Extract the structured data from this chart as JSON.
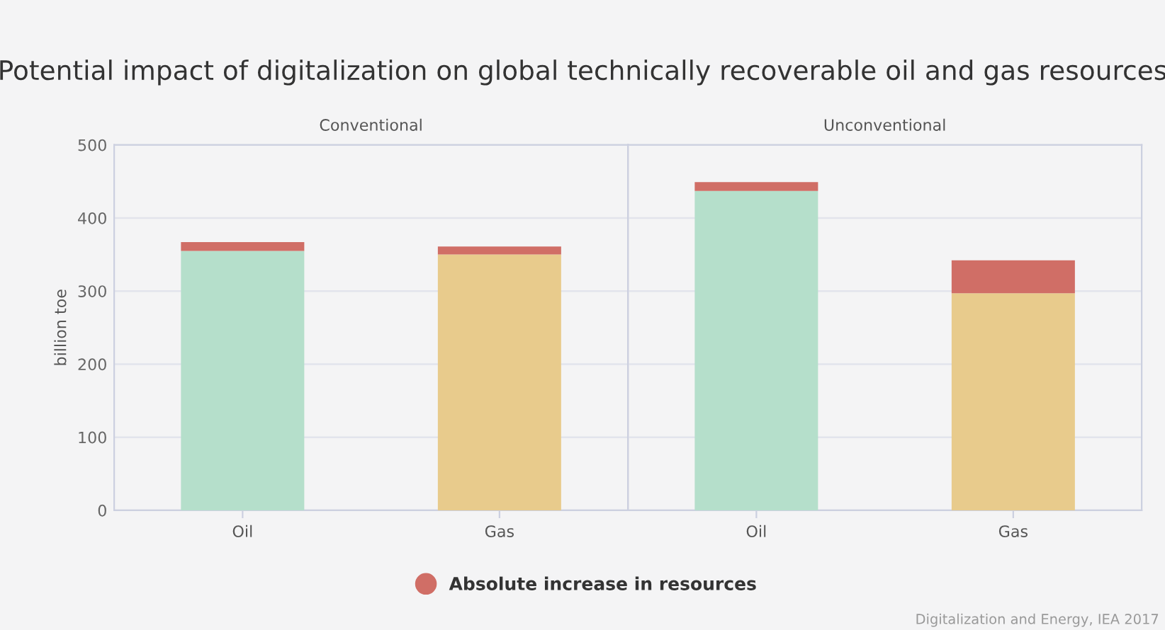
{
  "chart_data": {
    "type": "bar",
    "title": "Potential impact of digitalization on global technically recoverable oil and gas resources",
    "ylabel": "billion toe",
    "categories": [
      "Oil",
      "Gas",
      "Oil",
      "Gas"
    ],
    "stacked": true,
    "series": [
      {
        "colors": [
          "#b5dfcb",
          "#e8cb8c",
          "#b5dfcb",
          "#e8cb8c"
        ],
        "values": [
          355,
          350,
          437,
          297
        ]
      },
      {
        "name": "Absolute increase in resources",
        "color": "#d06e66",
        "values": [
          12,
          11,
          12,
          45
        ]
      }
    ],
    "ylim": [
      0,
      500
    ],
    "yticks": [
      0,
      100,
      200,
      300,
      400,
      500
    ],
    "grid": "y",
    "legend": "bottom",
    "marker": "circle",
    "annotations": [
      "Conventional",
      "Unconventional",
      "Digitalization and Energy, IEA 2017"
    ]
  }
}
